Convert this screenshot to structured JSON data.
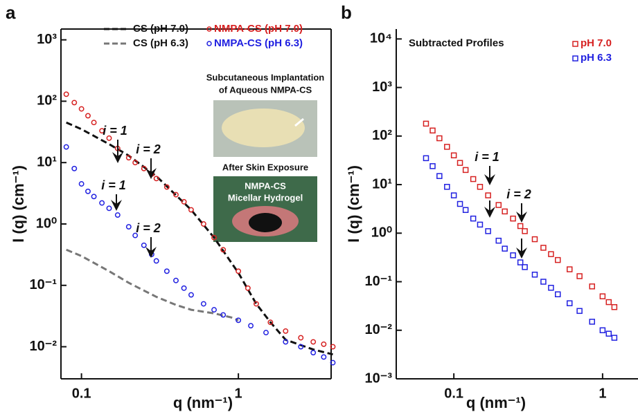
{
  "chart_data": [
    {
      "type": "line",
      "panel_label": "a",
      "xscale": "log",
      "yscale": "log",
      "xlabel": "q (nm⁻¹)",
      "ylabel": "I (q) (cm⁻¹)",
      "xlim": [
        0.074,
        3.9
      ],
      "ylim": [
        0.003,
        1500
      ],
      "xticks": [
        0.1,
        1
      ],
      "yticks": [
        {
          "value": 0.01,
          "label": "10⁻²"
        },
        {
          "value": 0.1,
          "label": "10⁻¹"
        },
        {
          "value": 1,
          "label": "10⁰"
        },
        {
          "value": 10,
          "label": "10¹"
        },
        {
          "value": 100,
          "label": "10²"
        },
        {
          "value": 1000,
          "label": "10³"
        }
      ],
      "series": [
        {
          "name": "CS (pH 7.0)",
          "color": "#111111",
          "style": "dashed",
          "x": [
            0.08,
            0.1,
            0.15,
            0.2,
            0.3,
            0.5,
            0.7,
            1,
            1.3,
            1.6,
            2,
            3,
            4
          ],
          "values": [
            45,
            35,
            20,
            13,
            6,
            1.7,
            0.6,
            0.16,
            0.05,
            0.025,
            0.013,
            0.009,
            0.0075
          ]
        },
        {
          "name": "CS (pH 6.3)",
          "color": "#777777",
          "style": "dashed",
          "x": [
            0.08,
            0.1,
            0.15,
            0.2,
            0.3,
            0.4,
            0.5,
            0.7,
            0.9,
            1
          ],
          "values": [
            0.38,
            0.3,
            0.17,
            0.11,
            0.065,
            0.048,
            0.04,
            0.035,
            0.03,
            0.027
          ]
        },
        {
          "name": "NMPA-CS (pH 7.0)",
          "color": "#d62020",
          "style": "circle",
          "x": [
            0.08,
            0.09,
            0.1,
            0.11,
            0.12,
            0.135,
            0.15,
            0.17,
            0.2,
            0.22,
            0.25,
            0.28,
            0.3,
            0.35,
            0.4,
            0.45,
            0.5,
            0.6,
            0.7,
            0.8,
            1,
            1.15,
            1.3,
            1.6,
            2,
            2.5,
            3,
            3.5,
            4
          ],
          "values": [
            130,
            95,
            75,
            58,
            45,
            33,
            25,
            17,
            12,
            10,
            8,
            6.5,
            5.5,
            4,
            3,
            2.3,
            1.7,
            1,
            0.6,
            0.38,
            0.17,
            0.09,
            0.05,
            0.025,
            0.018,
            0.014,
            0.012,
            0.011,
            0.01
          ]
        },
        {
          "name": "NMPA-CS (pH 6.3)",
          "color": "#2020e0",
          "style": "circle",
          "x": [
            0.08,
            0.09,
            0.1,
            0.11,
            0.12,
            0.135,
            0.15,
            0.17,
            0.2,
            0.22,
            0.25,
            0.28,
            0.3,
            0.35,
            0.4,
            0.45,
            0.5,
            0.6,
            0.7,
            0.8,
            1,
            1.2,
            1.5,
            2,
            2.5,
            3,
            3.5,
            4
          ],
          "values": [
            18,
            8,
            4.5,
            3.4,
            2.8,
            2.2,
            1.8,
            1.4,
            0.9,
            0.65,
            0.45,
            0.32,
            0.25,
            0.17,
            0.12,
            0.09,
            0.07,
            0.05,
            0.04,
            0.033,
            0.027,
            0.022,
            0.017,
            0.012,
            0.01,
            0.008,
            0.0068,
            0.0055
          ]
        }
      ],
      "annotations": [
        "i = 1",
        "i = 2",
        "i = 1",
        "i = 2"
      ],
      "inset_texts": [
        "Subcutaneous Implantation",
        "of Aqueous NMPA-CS",
        "After Skin Exposure",
        "NMPA-CS",
        "Micellar Hydrogel"
      ]
    },
    {
      "type": "line",
      "panel_label": "b",
      "xscale": "log",
      "yscale": "log",
      "title": "Subtracted Profiles",
      "xlabel": "q (nm⁻¹)",
      "ylabel": "I (q) (cm⁻¹)",
      "xlim": [
        0.041,
        1.73
      ],
      "ylim": [
        0.001,
        16000
      ],
      "xticks": [
        0.1,
        1
      ],
      "yticks": [
        {
          "value": 0.001,
          "label": "10⁻³"
        },
        {
          "value": 0.01,
          "label": "10⁻²"
        },
        {
          "value": 0.1,
          "label": "10⁻¹"
        },
        {
          "value": 1,
          "label": "10⁰"
        },
        {
          "value": 10,
          "label": "10¹"
        },
        {
          "value": 100,
          "label": "10²"
        },
        {
          "value": 1000,
          "label": "10³"
        },
        {
          "value": 10000,
          "label": "10⁴"
        }
      ],
      "series": [
        {
          "name": "pH 7.0",
          "color": "#d62020",
          "style": "square",
          "x": [
            0.065,
            0.072,
            0.08,
            0.09,
            0.1,
            0.11,
            0.12,
            0.135,
            0.15,
            0.17,
            0.2,
            0.22,
            0.25,
            0.28,
            0.3,
            0.35,
            0.4,
            0.45,
            0.5,
            0.6,
            0.7,
            0.85,
            1,
            1.1,
            1.2
          ],
          "values": [
            180,
            130,
            90,
            60,
            40,
            28,
            20,
            13,
            9,
            6,
            3.8,
            2.8,
            2,
            1.4,
            1.1,
            0.75,
            0.5,
            0.37,
            0.28,
            0.18,
            0.13,
            0.08,
            0.05,
            0.038,
            0.03
          ]
        },
        {
          "name": "pH 6.3",
          "color": "#2020e0",
          "style": "square",
          "x": [
            0.065,
            0.072,
            0.08,
            0.09,
            0.1,
            0.11,
            0.12,
            0.135,
            0.15,
            0.17,
            0.2,
            0.22,
            0.25,
            0.28,
            0.3,
            0.35,
            0.4,
            0.45,
            0.5,
            0.6,
            0.7,
            0.85,
            1,
            1.1,
            1.2
          ],
          "values": [
            35,
            24,
            15,
            9,
            6,
            4,
            3,
            2,
            1.5,
            1.1,
            0.7,
            0.48,
            0.35,
            0.25,
            0.2,
            0.14,
            0.1,
            0.075,
            0.055,
            0.036,
            0.025,
            0.015,
            0.01,
            0.0085,
            0.007
          ]
        }
      ],
      "annotations": [
        "i = 1",
        "i = 2"
      ]
    }
  ]
}
